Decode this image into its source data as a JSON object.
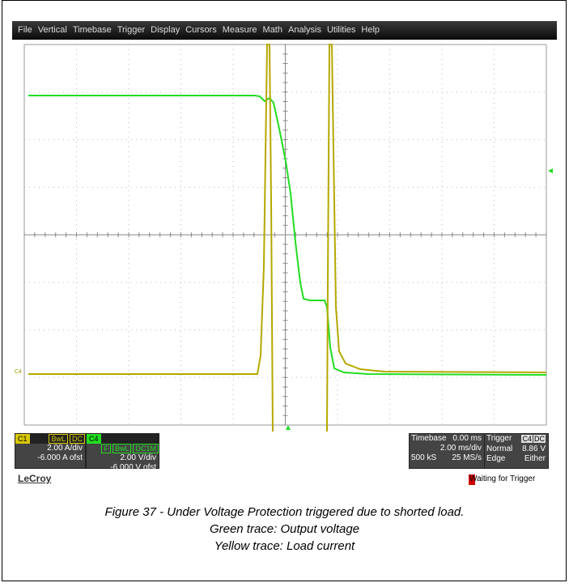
{
  "menu": [
    "File",
    "Vertical",
    "Timebase",
    "Trigger",
    "Display",
    "Cursors",
    "Measure",
    "Math",
    "Analysis",
    "Utilities",
    "Help"
  ],
  "trace_marker": "C4",
  "channels": [
    {
      "label": "C1",
      "tags": [
        "BwL",
        "DC"
      ],
      "scale": "2.00 A/div",
      "offset": "-6.000 A ofst"
    },
    {
      "label": "C4",
      "tags": [
        "F",
        "BwL",
        "DC1M"
      ],
      "scale": "2.00 V/div",
      "offset": "-6.000 V ofst"
    }
  ],
  "timebase": {
    "label": "Timebase",
    "delay": "0.00 ms",
    "scale": "2.00 ms/div",
    "samples": "500 kS",
    "rate": "25 MS/s"
  },
  "trigger": {
    "label": "Trigger",
    "tags": [
      "C4",
      "DC"
    ],
    "mode": "Normal",
    "level": "8.86 V",
    "type": "Edge",
    "slope": "Either"
  },
  "brand": "LeCroy",
  "status": "Waiting for Trigger",
  "caption": [
    "Figure 37 - Under Voltage Protection triggered due to shorted load.",
    "Green trace: Output voltage",
    "Yellow trace: Load current"
  ]
}
